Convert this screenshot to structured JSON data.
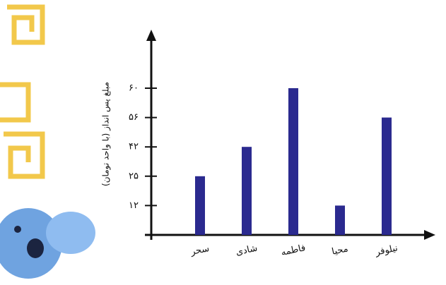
{
  "chart_data": {
    "type": "bar",
    "y_label": "مبلغ پس انداز (با واحد تومان)",
    "categories": [
      "سحر",
      "شادی",
      "فاطمه",
      "محیا",
      "نیلوفر"
    ],
    "values": [
      25,
      42,
      60,
      12,
      56
    ],
    "color": "#2b2a8f",
    "ylim": [
      0,
      60
    ],
    "yticks": [
      {
        "value": 12,
        "label": "۱۲"
      },
      {
        "value": 25,
        "label": "۲۵"
      },
      {
        "value": 42,
        "label": "۴۲"
      },
      {
        "value": 56,
        "label": "۵۶"
      },
      {
        "value": 60,
        "label": "۶۰"
      }
    ]
  }
}
